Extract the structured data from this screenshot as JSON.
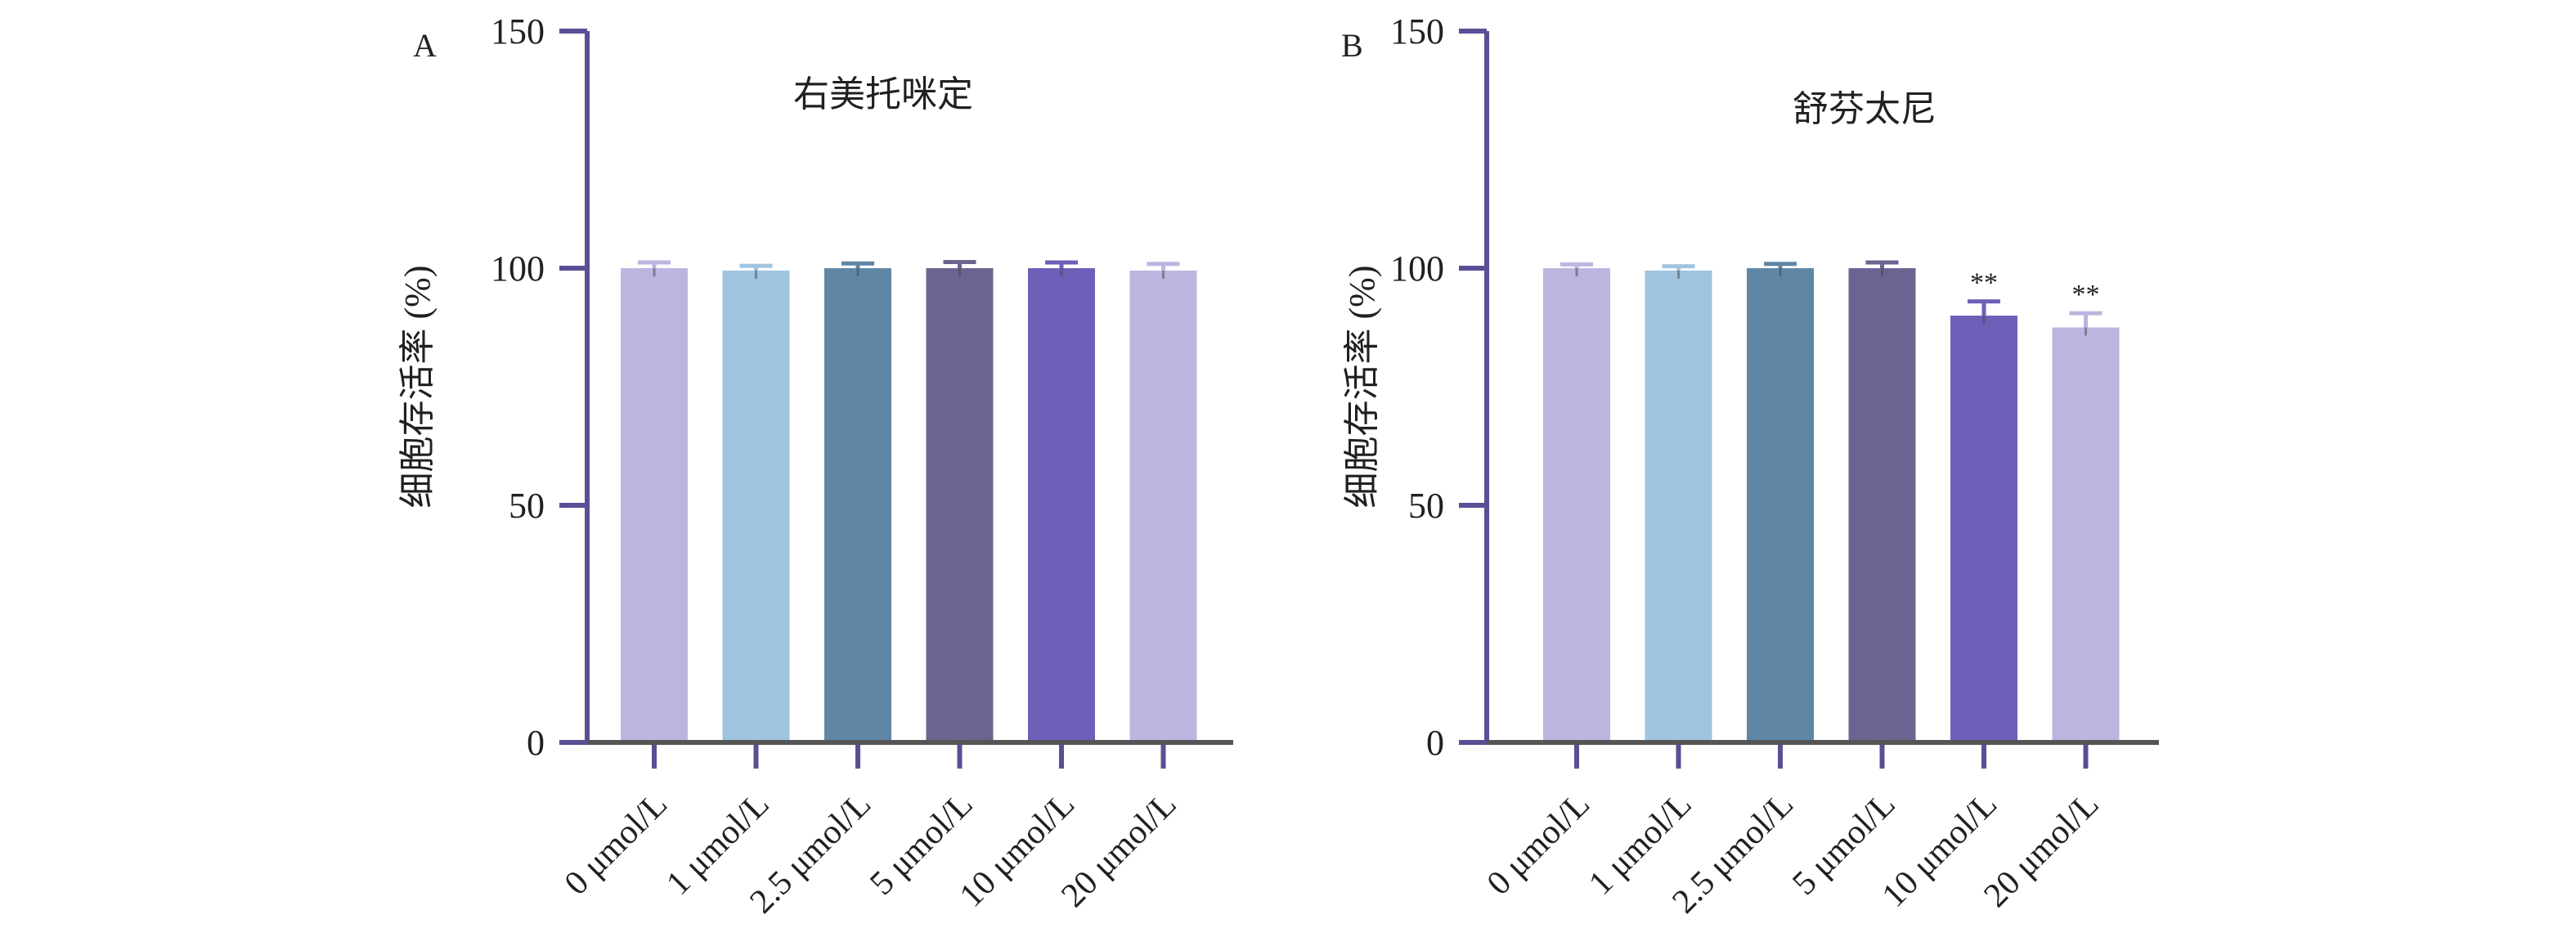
{
  "chart_data": [
    {
      "panel": "A",
      "type": "bar",
      "title": "右美托咪定",
      "ylabel": "细胞存活率 (%)",
      "xlabel": "",
      "ylim": [
        0,
        150
      ],
      "yticks": [
        "0",
        "50",
        "100",
        "150"
      ],
      "categories": [
        "0 μmol/L",
        "1 μmol/L",
        "2.5 μmol/L",
        "5 μmol/L",
        "10 μmol/L",
        "20 μmol/L"
      ],
      "values": [
        100,
        99.5,
        100,
        100,
        100,
        99.5
      ],
      "errors": [
        1.2,
        1,
        1,
        1.3,
        1.2,
        1.4
      ],
      "significance": [
        "",
        "",
        "",
        "",
        "",
        ""
      ],
      "colors": [
        "#bab6e0",
        "#9fc4e0",
        "#5f86a5",
        "#6b6491",
        "#6f5fb8",
        "#bab6e0"
      ],
      "grid": false
    },
    {
      "panel": "B",
      "type": "bar",
      "title": "舒芬太尼",
      "ylabel": "细胞存活率 (%)",
      "xlabel": "",
      "ylim": [
        0,
        150
      ],
      "yticks": [
        "0",
        "50",
        "100",
        "150"
      ],
      "categories": [
        "0 μmol/L",
        "1 μmol/L",
        "2.5 μmol/L",
        "5 μmol/L",
        "10 μmol/L",
        "20 μmol/L"
      ],
      "values": [
        100,
        99.5,
        100,
        100,
        90,
        87.5
      ],
      "errors": [
        0.8,
        0.9,
        0.9,
        1.2,
        3,
        3
      ],
      "significance": [
        "",
        "",
        "",
        "",
        "**",
        "**"
      ],
      "colors": [
        "#bab6e0",
        "#9fc4e0",
        "#5f86a5",
        "#6b6491",
        "#6f5fb8",
        "#bab6e0"
      ],
      "grid": false
    }
  ],
  "style": {
    "axis_color": "#5a4e94",
    "baseline_color": "#555555",
    "text_color": "#231f20"
  }
}
